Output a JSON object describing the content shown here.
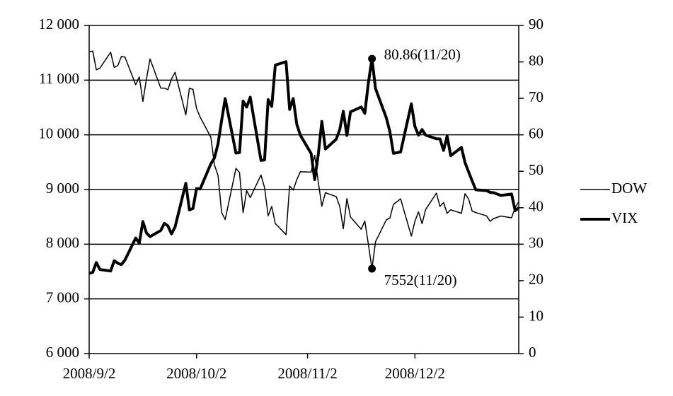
{
  "chart_data": {
    "type": "line",
    "x": [
      "2008-09-02",
      "2008-09-03",
      "2008-09-04",
      "2008-09-05",
      "2008-09-08",
      "2008-09-09",
      "2008-09-10",
      "2008-09-11",
      "2008-09-12",
      "2008-09-15",
      "2008-09-16",
      "2008-09-17",
      "2008-09-18",
      "2008-09-19",
      "2008-09-22",
      "2008-09-23",
      "2008-09-24",
      "2008-09-25",
      "2008-09-26",
      "2008-09-29",
      "2008-09-30",
      "2008-10-01",
      "2008-10-02",
      "2008-10-03",
      "2008-10-06",
      "2008-10-07",
      "2008-10-08",
      "2008-10-09",
      "2008-10-10",
      "2008-10-13",
      "2008-10-14",
      "2008-10-15",
      "2008-10-16",
      "2008-10-17",
      "2008-10-20",
      "2008-10-21",
      "2008-10-22",
      "2008-10-23",
      "2008-10-24",
      "2008-10-27",
      "2008-10-28",
      "2008-10-29",
      "2008-10-30",
      "2008-10-31",
      "2008-11-03",
      "2008-11-04",
      "2008-11-05",
      "2008-11-06",
      "2008-11-07",
      "2008-11-10",
      "2008-11-11",
      "2008-11-12",
      "2008-11-13",
      "2008-11-14",
      "2008-11-17",
      "2008-11-18",
      "2008-11-19",
      "2008-11-20",
      "2008-11-21",
      "2008-11-24",
      "2008-11-25",
      "2008-11-26",
      "2008-11-28",
      "2008-12-01",
      "2008-12-02",
      "2008-12-03",
      "2008-12-04",
      "2008-12-05",
      "2008-12-08",
      "2008-12-09",
      "2008-12-10",
      "2008-12-11",
      "2008-12-12",
      "2008-12-15",
      "2008-12-16",
      "2008-12-17",
      "2008-12-18",
      "2008-12-19",
      "2008-12-22",
      "2008-12-23",
      "2008-12-24",
      "2008-12-26",
      "2008-12-29",
      "2008-12-30",
      "2008-12-31"
    ],
    "series": [
      {
        "name": "DOW",
        "color": "#000000",
        "line_width": 1.5,
        "values": [
          11516,
          11532,
          11188,
          11220,
          11510,
          11231,
          11268,
          11433,
          11421,
          10917,
          11059,
          10609,
          11019,
          11388,
          10854,
          10854,
          10825,
          11022,
          11143,
          10365,
          10851,
          10831,
          10482,
          10325,
          9955,
          9447,
          9258,
          8579,
          8451,
          9387,
          9310,
          8577,
          8979,
          8852,
          9265,
          9033,
          8519,
          8691,
          8378,
          8175,
          9065,
          8990,
          9180,
          9325,
          9319,
          9625,
          9139,
          8695,
          8943,
          8870,
          8693,
          8283,
          8835,
          8497,
          8273,
          8425,
          7997,
          7552,
          8046,
          8443,
          8479,
          8727,
          8829,
          8149,
          8419,
          8591,
          8376,
          8635,
          8934,
          8691,
          8761,
          8565,
          8629,
          8565,
          8924,
          8824,
          8604,
          8579,
          8519,
          8419,
          8468,
          8515,
          8483,
          8668,
          8776
        ]
      },
      {
        "name": "VIX",
        "color": "#000000",
        "line_width": 4,
        "axis": "y2",
        "values": [
          21.99,
          22.28,
          24.98,
          23.06,
          22.64,
          25.47,
          24.77,
          24.39,
          25.66,
          31.7,
          30.3,
          36.22,
          33.1,
          32.07,
          33.76,
          35.72,
          35.03,
          32.82,
          34.74,
          46.72,
          39.39,
          39.81,
          45.26,
          45.14,
          52.05,
          53.68,
          57.53,
          63.92,
          69.95,
          54.99,
          55.13,
          69.25,
          67.61,
          70.33,
          52.97,
          53.11,
          69.65,
          67.8,
          79.13,
          80.06,
          66.96,
          69.96,
          62.9,
          59.89,
          54.9,
          47.73,
          54.56,
          63.68,
          56.1,
          58.77,
          61.44,
          66.46,
          59.83,
          66.31,
          67.64,
          65.9,
          74.26,
          80.86,
          72.67,
          64.7,
          60.9,
          54.92,
          55.28,
          68.51,
          62.31,
          59.93,
          61.44,
          59.93,
          58.91,
          58.89,
          55.73,
          59.67,
          54.28,
          56.54,
          52.37,
          49.84,
          47.34,
          44.93,
          44.69,
          44.21,
          44.13,
          43.38,
          43.77,
          39.19,
          40.0
        ]
      }
    ],
    "xlim": [
      "2008-09-02",
      "2008-12-31"
    ],
    "xticks": [
      {
        "value": "2008-09-02",
        "label": "2008/9/2"
      },
      {
        "value": "2008-10-02",
        "label": "2008/10/2"
      },
      {
        "value": "2008-11-02",
        "label": "2008/11/2"
      },
      {
        "value": "2008-12-02",
        "label": "2008/12/2"
      }
    ],
    "ylim": [
      6000,
      12000
    ],
    "yticks": [
      {
        "value": 6000,
        "label": "6 000"
      },
      {
        "value": 7000,
        "label": "7 000"
      },
      {
        "value": 8000,
        "label": "8 000"
      },
      {
        "value": 9000,
        "label": "9 000"
      },
      {
        "value": 10000,
        "label": "10 000"
      },
      {
        "value": 11000,
        "label": "11 000"
      },
      {
        "value": 12000,
        "label": "12 000"
      }
    ],
    "y2lim": [
      0,
      90
    ],
    "y2ticks": [
      0,
      10,
      20,
      30,
      40,
      50,
      60,
      70,
      80,
      90
    ],
    "grid": true,
    "legend": "right",
    "annotations": [
      {
        "text": "80.86(11/20)",
        "x": "2008-11-20",
        "y": 80.86,
        "axis": "y2"
      },
      {
        "text": "7552(11/20)",
        "x": "2008-11-20",
        "y": 7552
      }
    ]
  }
}
